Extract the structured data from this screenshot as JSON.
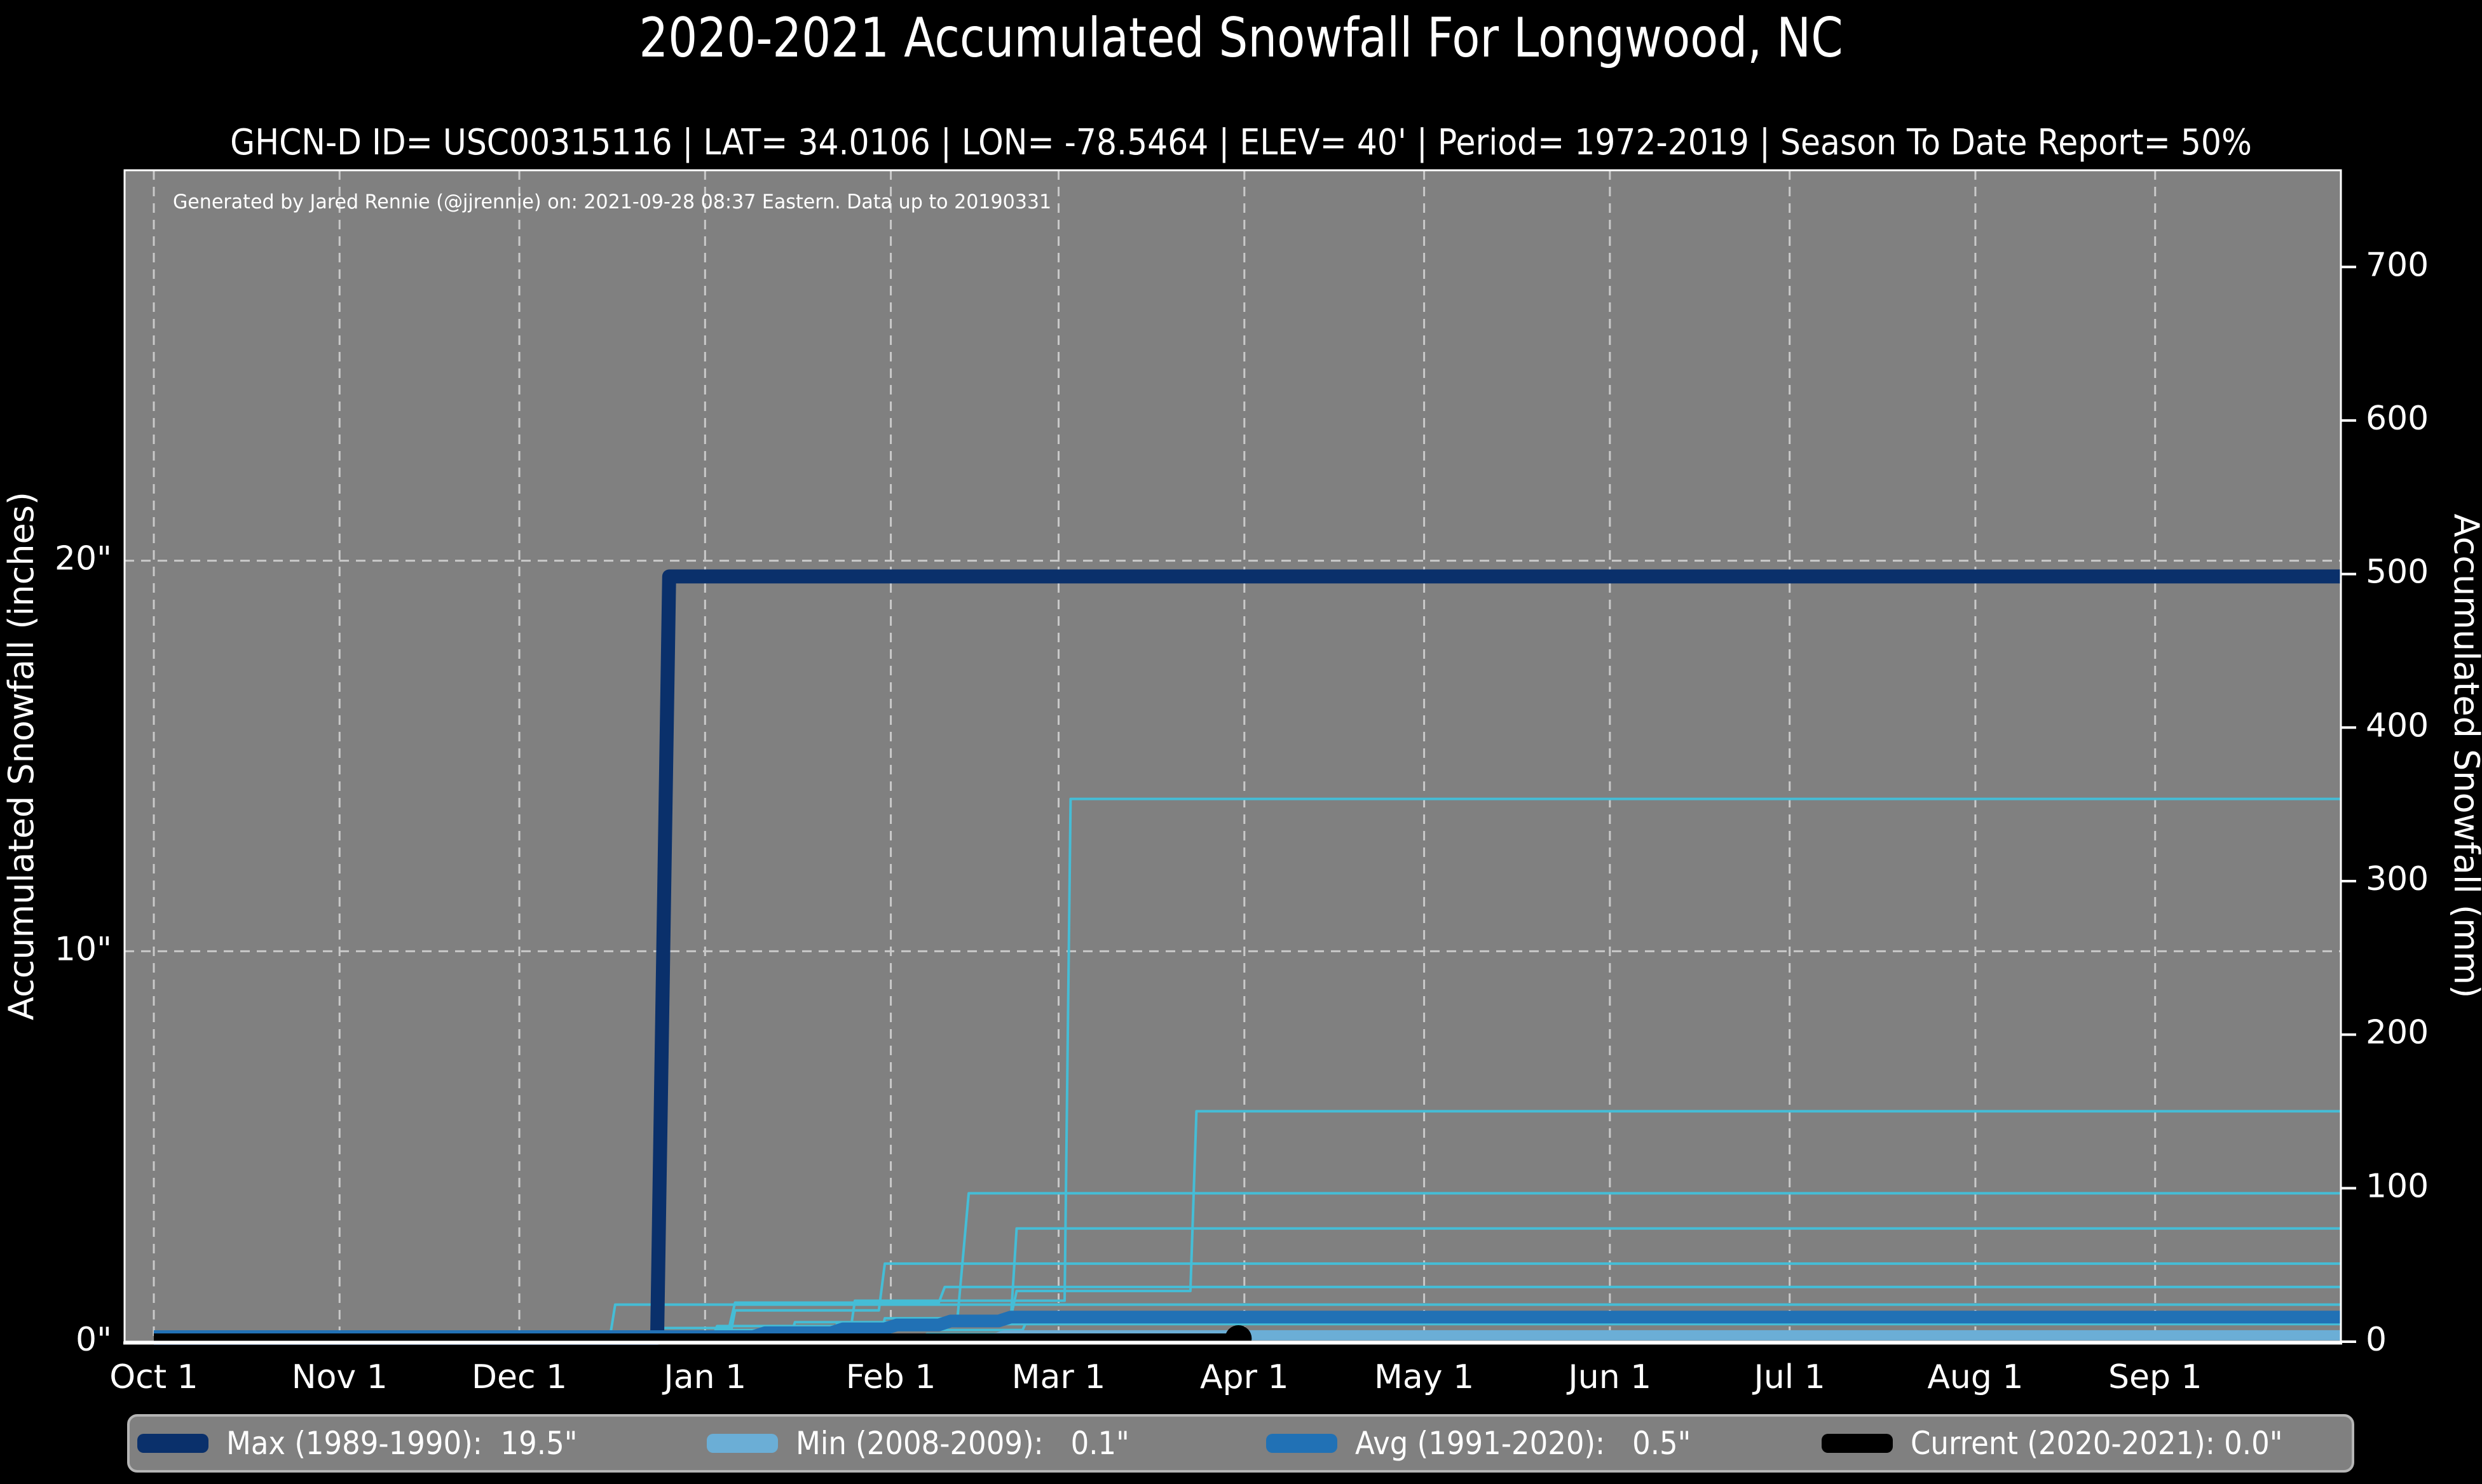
{
  "title": "2020-2021 Accumulated Snowfall For Longwood, NC",
  "subtitle": "GHCN-D ID= USC00315116 | LAT= 34.0106 | LON= -78.5464 | ELEV= 40' | Period= 1972-2019 | Season To Date Report= 50%",
  "annotation": "Generated by Jared Rennie (@jjrennie) on: 2021-09-28 08:37 Eastern. Data up to 20190331",
  "colors": {
    "figure_bg": "#000000",
    "plot_bg": "#808080",
    "grid": "#c9c9c9",
    "spine": "#ffffff",
    "text": "#ffffff",
    "max": "#0a306b",
    "min": "#6baed6",
    "avg": "#2171b5",
    "current": "#000000",
    "year_line": "#45bdd6"
  },
  "legend": {
    "items": [
      {
        "label": "Max (1989-1990):  19.5\"",
        "color": "max"
      },
      {
        "label": "Min (2008-2009):   0.1\"",
        "color": "min"
      },
      {
        "label": "Avg (1991-2020):   0.5\"",
        "color": "avg"
      },
      {
        "label": "Current (2020-2021): 0.0\"",
        "color": "current"
      }
    ]
  },
  "chart_data": {
    "type": "line",
    "x_unit": "days since Oct 1",
    "x_range": [
      0,
      365
    ],
    "grid": "dashed, monthly vertical + every 10 inches horizontal",
    "left_axis": {
      "label": "Accumulated Snowfall (inches)",
      "range_inches": [
        0,
        30
      ],
      "ticks": [
        {
          "label": "0\"",
          "value": 0
        },
        {
          "label": "10\"",
          "value": 10
        },
        {
          "label": "20\"",
          "value": 20
        }
      ]
    },
    "right_axis": {
      "label": "Accumulated Snowfall (mm)",
      "range_mm": [
        0,
        763
      ],
      "ticks": [
        0,
        100,
        200,
        300,
        400,
        500,
        600,
        700
      ]
    },
    "x_ticks": [
      {
        "label": "Oct 1",
        "day": 0
      },
      {
        "label": "Nov 1",
        "day": 31
      },
      {
        "label": "Dec 1",
        "day": 61
      },
      {
        "label": "Jan 1",
        "day": 92
      },
      {
        "label": "Feb 1",
        "day": 123
      },
      {
        "label": "Mar 1",
        "day": 151
      },
      {
        "label": "Apr 1",
        "day": 182
      },
      {
        "label": "May 1",
        "day": 212
      },
      {
        "label": "Jun 1",
        "day": 243
      },
      {
        "label": "Jul 1",
        "day": 273
      },
      {
        "label": "Aug 1",
        "day": 304
      },
      {
        "label": "Sep 1",
        "day": 334
      }
    ],
    "series": [
      {
        "name": "year-line-1",
        "color": "year_line",
        "width": 4,
        "points": [
          [
            0,
            0
          ],
          [
            116,
            0
          ],
          [
            117,
            1.05
          ],
          [
            152,
            1.05
          ],
          [
            153,
            13.9
          ],
          [
            365,
            13.9
          ]
        ]
      },
      {
        "name": "year-line-2",
        "color": "year_line",
        "width": 4,
        "points": [
          [
            0,
            0
          ],
          [
            121,
            0
          ],
          [
            122,
            0.6
          ],
          [
            143,
            0.6
          ],
          [
            144,
            1.3
          ],
          [
            173,
            1.3
          ],
          [
            174,
            5.9
          ],
          [
            365,
            5.9
          ]
        ]
      },
      {
        "name": "year-line-3",
        "color": "year_line",
        "width": 4,
        "points": [
          [
            0,
            0
          ],
          [
            93,
            0
          ],
          [
            94,
            0.4
          ],
          [
            134,
            0.4
          ],
          [
            136,
            3.8
          ],
          [
            365,
            3.8
          ]
        ]
      },
      {
        "name": "year-line-4",
        "color": "year_line",
        "width": 4,
        "points": [
          [
            0,
            0
          ],
          [
            106,
            0
          ],
          [
            107,
            0.5
          ],
          [
            143,
            0.5
          ],
          [
            144,
            2.9
          ],
          [
            365,
            2.9
          ]
        ]
      },
      {
        "name": "year-line-5",
        "color": "year_line",
        "width": 4,
        "points": [
          [
            0,
            0
          ],
          [
            96,
            0
          ],
          [
            97,
            0.8
          ],
          [
            121,
            0.8
          ],
          [
            122,
            2.0
          ],
          [
            365,
            2.0
          ]
        ]
      },
      {
        "name": "year-line-6",
        "color": "year_line",
        "width": 4,
        "points": [
          [
            0,
            0
          ],
          [
            83,
            0
          ],
          [
            84,
            0.35
          ],
          [
            96,
            0.35
          ],
          [
            97,
            1.0
          ],
          [
            131,
            1.0
          ],
          [
            132,
            1.4
          ],
          [
            365,
            1.4
          ]
        ]
      },
      {
        "name": "year-line-7",
        "color": "year_line",
        "width": 4,
        "points": [
          [
            0,
            0
          ],
          [
            76,
            0
          ],
          [
            77,
            0.95
          ],
          [
            365,
            0.95
          ]
        ]
      },
      {
        "name": "year-line-8",
        "color": "year_line",
        "width": 4,
        "points": [
          [
            0,
            0
          ],
          [
            93,
            0
          ],
          [
            94,
            0.3
          ],
          [
            145,
            0.3
          ],
          [
            146,
            0.65
          ],
          [
            365,
            0.65
          ]
        ]
      },
      {
        "name": "year-line-9",
        "color": "year_line",
        "width": 4,
        "points": [
          [
            0,
            0
          ],
          [
            113,
            0
          ],
          [
            114,
            0.45
          ],
          [
            365,
            0.45
          ]
        ]
      },
      {
        "name": "year-line-10",
        "color": "year_line",
        "width": 4,
        "points": [
          [
            0,
            0
          ],
          [
            128,
            0
          ],
          [
            129,
            0.2
          ],
          [
            365,
            0.2
          ]
        ]
      },
      {
        "name": "max-1989-1990",
        "color": "max",
        "width": 22,
        "lift": 6,
        "total_inches": 19.5,
        "points": [
          [
            0,
            0
          ],
          [
            84,
            0
          ],
          [
            86,
            19.5
          ],
          [
            365,
            19.5
          ]
        ]
      },
      {
        "name": "min-2008-2009",
        "color": "min",
        "width": 16,
        "lift": 4,
        "total_inches": 0.1,
        "points": [
          [
            0,
            0
          ],
          [
            140,
            0
          ],
          [
            142,
            0.1
          ],
          [
            365,
            0.1
          ]
        ]
      },
      {
        "name": "avg-1991-2020",
        "color": "avg",
        "width": 20,
        "lift": 8,
        "total_inches": 0.5,
        "points": [
          [
            0,
            0
          ],
          [
            100,
            0
          ],
          [
            102,
            0.1
          ],
          [
            113,
            0.1
          ],
          [
            115,
            0.2
          ],
          [
            122,
            0.2
          ],
          [
            124,
            0.3
          ],
          [
            131,
            0.3
          ],
          [
            133,
            0.4
          ],
          [
            141,
            0.4
          ],
          [
            143,
            0.5
          ],
          [
            365,
            0.5
          ]
        ]
      },
      {
        "name": "current-2020-2021",
        "color": "current",
        "width": 16,
        "lift": 5,
        "total_inches": 0.0,
        "marker_end": true,
        "points": [
          [
            0,
            0
          ],
          [
            181,
            0
          ]
        ]
      }
    ]
  }
}
